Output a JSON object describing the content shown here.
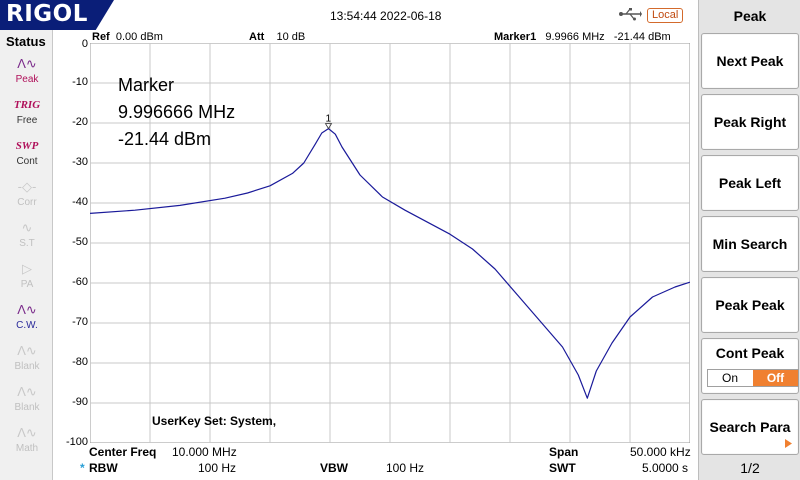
{
  "header": {
    "brand": "RIGOL",
    "datetime": "13:54:44 2022-06-18",
    "remote_status": "Local"
  },
  "status_panel": {
    "title": "Status",
    "items": [
      {
        "icon": "peak-waveform-icon",
        "label": "Peak",
        "symbol": "Λ∿",
        "active": true
      },
      {
        "icon": "trig-icon",
        "symbol": "TRIG",
        "label": "Free",
        "active": true
      },
      {
        "icon": "sweep-icon",
        "symbol": "SWP",
        "label": "Cont",
        "active": true
      },
      {
        "icon": "correction-icon",
        "symbol": "-◇-",
        "label": "Corr",
        "active": false
      },
      {
        "icon": "signal-track-icon",
        "symbol": "∿",
        "label": "S.T",
        "active": false
      },
      {
        "icon": "preamp-icon",
        "symbol": "▷",
        "label": "PA",
        "active": false
      },
      {
        "icon": "cw-icon",
        "symbol": "Λ∿",
        "label": "C.W.",
        "active": true
      },
      {
        "icon": "blank-icon",
        "symbol": "Λ∿",
        "label": "Blank",
        "active": false
      },
      {
        "icon": "blank-icon",
        "symbol": "Λ∿",
        "label": "Blank",
        "active": false
      },
      {
        "icon": "math-icon",
        "symbol": "Λ∿",
        "label": "Math",
        "active": false
      }
    ]
  },
  "trace_header": {
    "ref_label": "Ref",
    "ref_value": "0.00 dBm",
    "att_label": "Att",
    "att_value": "10 dB",
    "marker_label": "Marker1",
    "marker_freq": "9.9966 MHz",
    "marker_level": "-21.44 dBm"
  },
  "marker_readout": {
    "title": "Marker",
    "freq": "9.996666 MHz",
    "level": "-21.44 dBm",
    "number": "1"
  },
  "y_axis": [
    "0",
    "-10",
    "-20",
    "-30",
    "-40",
    "-50",
    "-60",
    "-70",
    "-80",
    "-90",
    "-100"
  ],
  "userkey": "UserKey Set:   System,",
  "bottom": {
    "center_label": "Center Freq",
    "center_value": "10.000 MHz",
    "span_label": "Span",
    "span_value": "50.000 kHz",
    "rbw_mark": "*",
    "rbw_label": "RBW",
    "rbw_value": "100 Hz",
    "vbw_label": "VBW",
    "vbw_value": "100 Hz",
    "swt_label": "SWT",
    "swt_value": "5.0000 s"
  },
  "menu": {
    "title": "Peak",
    "buttons": [
      "Next Peak",
      "Peak Right",
      "Peak Left",
      "Min Search",
      "Peak Peak",
      "Cont Peak",
      "Search Para"
    ],
    "cont_peak_on": "On",
    "cont_peak_off": "Off",
    "page": "1/2"
  },
  "chart_data": {
    "type": "line",
    "ylim": [
      -100,
      0
    ],
    "xlim_div": [
      0,
      10
    ],
    "trace_color": "#1a1a9a",
    "points_div_db": [
      [
        0,
        -42.6
      ],
      [
        1,
        -41.8
      ],
      [
        2,
        -40.6
      ],
      [
        3,
        -38.8
      ],
      [
        3.5,
        -37.5
      ],
      [
        4,
        -35.7
      ],
      [
        4.5,
        -32.6
      ],
      [
        4.75,
        -30.0
      ],
      [
        5.0,
        -25.4
      ],
      [
        5.15,
        -22.5
      ],
      [
        5.3,
        -21.4
      ],
      [
        5.45,
        -22.8
      ],
      [
        5.6,
        -26.0
      ],
      [
        6.0,
        -33.0
      ],
      [
        6.5,
        -38.5
      ],
      [
        7.0,
        -41.8
      ],
      [
        7.5,
        -44.8
      ],
      [
        8.0,
        -47.8
      ],
      [
        8.5,
        -51.5
      ],
      [
        9.0,
        -56.5
      ],
      [
        9.5,
        -63.0
      ],
      [
        10.0,
        -69.5
      ],
      [
        10.5,
        -76.0
      ],
      [
        10.85,
        -83.0
      ],
      [
        11.05,
        -88.8
      ],
      [
        11.25,
        -82.0
      ],
      [
        11.6,
        -75.0
      ],
      [
        12.0,
        -68.5
      ],
      [
        12.5,
        -63.5
      ],
      [
        13.0,
        -61.0
      ],
      [
        13.33,
        -59.8
      ]
    ]
  }
}
